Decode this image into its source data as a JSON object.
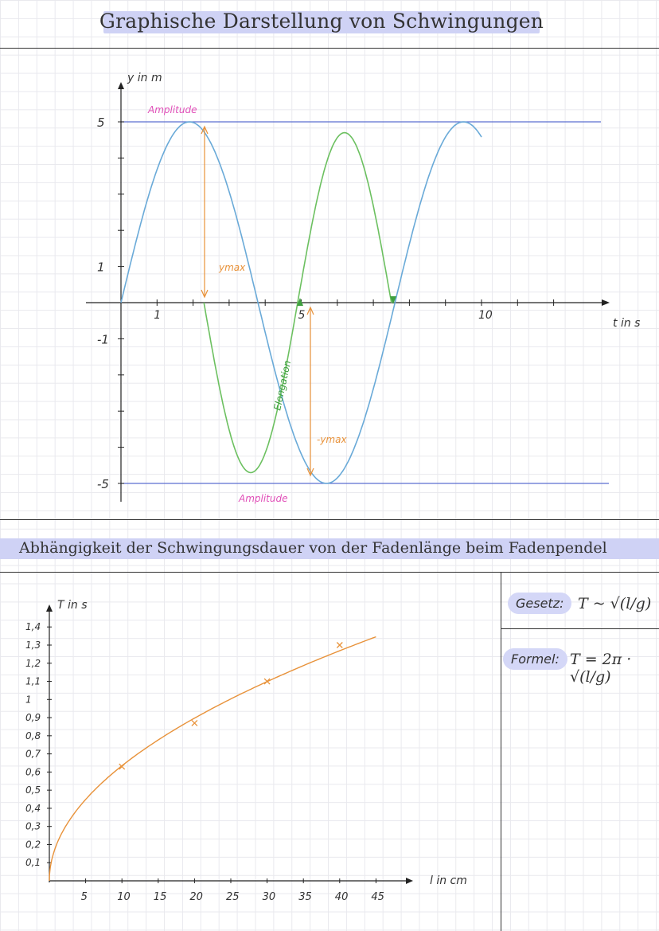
{
  "section1": {
    "title": "Graphische Darstellung von Schwingungen",
    "labels": {
      "y_axis": "y in m",
      "t_axis": "t in s",
      "amplitude_top": "Amplitude",
      "amplitude_bottom": "Amplitude",
      "ymax": "ymax",
      "neg_ymax": "-ymax",
      "elongation": "Elongation"
    }
  },
  "section2": {
    "title": "Abhängigkeit der Schwingungsdauer von der Fadenlänge beim Fadenpendel",
    "gesetz_label": "Gesetz:",
    "gesetz_formula": "T ~ √(l/g)",
    "formel_label": "Formel:",
    "formel_formula": "T = 2π · √(l/g)"
  },
  "colors": {
    "blue_curve": "#6aaad8",
    "green_curve": "#6cc060",
    "orange": "#e8923a",
    "pink": "#e04fb8",
    "guide_line": "#5c6fd0",
    "pill": "#d4d7f7"
  },
  "chart_data": [
    {
      "type": "line",
      "title": "",
      "xlabel": "t in s",
      "ylabel": "y in m",
      "x_ticks": [
        "1",
        "5",
        "10"
      ],
      "y_ticks": [
        "5",
        "1",
        "-1",
        "-5"
      ],
      "ylim": [
        -5,
        5
      ],
      "xlim": [
        0,
        13
      ],
      "series": [
        {
          "name": "",
          "kind": "sine",
          "amplitude": 5,
          "period": 7.6,
          "x": [
            0,
            10
          ]
        },
        {
          "name": "",
          "kind": "sine",
          "amplitude": 4.7,
          "period": 5.2,
          "x": [
            2.3,
            7.5
          ]
        }
      ],
      "annotations": [
        "Amplitude",
        "Amplitude",
        "ymax",
        "-ymax",
        "Elongation"
      ]
    },
    {
      "type": "line",
      "title": "",
      "xlabel": "l in cm",
      "ylabel": "T in s",
      "x_ticks": [
        "5",
        "10",
        "15",
        "20",
        "25",
        "30",
        "35",
        "40",
        "45"
      ],
      "y_ticks": [
        "1,4",
        "1,3",
        "1,2",
        "1,1",
        "1",
        "0,9",
        "0,8",
        "0,7",
        "0,6",
        "0,5",
        "0,4",
        "0,3",
        "0,2",
        "0,1"
      ],
      "xlim": [
        0,
        50
      ],
      "ylim": [
        0,
        1.5
      ],
      "measured": {
        "x": [
          10,
          20,
          30,
          40
        ],
        "y": [
          0.63,
          0.87,
          1.1,
          1.3
        ]
      },
      "curve": {
        "x": [
          0,
          45
        ],
        "model": "T = 2π·√(l/g)"
      }
    }
  ]
}
